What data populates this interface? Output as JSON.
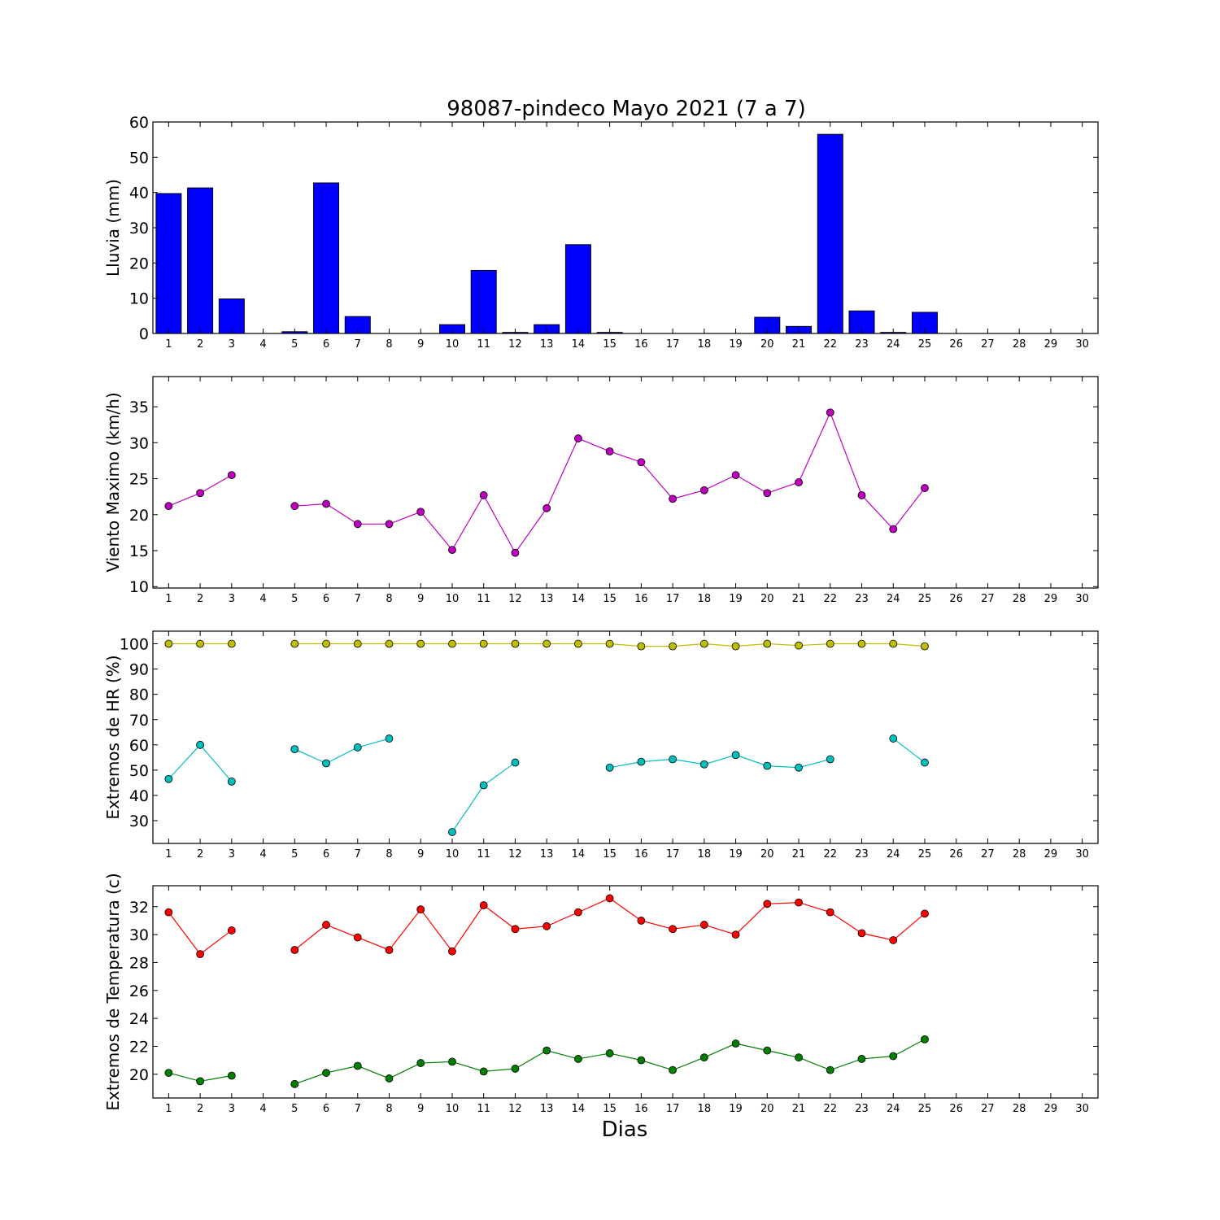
{
  "title": "98087-pindeco Mayo 2021  (7 a 7)",
  "xlabel": "Dias",
  "chart_data": [
    {
      "type": "bar",
      "ylabel": "Lluvia (mm)",
      "x": [
        1,
        2,
        3,
        4,
        5,
        6,
        7,
        8,
        9,
        10,
        11,
        12,
        13,
        14,
        15,
        16,
        17,
        18,
        19,
        20,
        21,
        22,
        23,
        24,
        25
      ],
      "values": [
        39.7,
        41.3,
        9.8,
        0,
        0.5,
        42.7,
        4.8,
        0,
        0,
        2.5,
        17.9,
        0.3,
        2.5,
        25.2,
        0.3,
        0,
        0,
        0,
        0,
        4.6,
        2.0,
        56.5,
        6.4,
        0.3,
        6.0
      ],
      "color": "#0000ff",
      "xlim": [
        0.5,
        30.5
      ],
      "ylim": [
        0,
        60
      ],
      "yticks": [
        0,
        10,
        20,
        30,
        40,
        50,
        60
      ]
    },
    {
      "type": "line",
      "ylabel": "Viento Maximo (km/h)",
      "xlim": [
        0.5,
        30.5
      ],
      "ylim": [
        9.8,
        39.2
      ],
      "yticks": [
        10,
        15,
        20,
        25,
        30,
        35
      ],
      "series": [
        {
          "color": "#bf00bf",
          "x": [
            1,
            2,
            3,
            4,
            5,
            6,
            7,
            8,
            9,
            10,
            11,
            12,
            13,
            14,
            15,
            16,
            17,
            18,
            19,
            20,
            21,
            22,
            23,
            24,
            25
          ],
          "values": [
            21.2,
            23.0,
            25.5,
            null,
            21.2,
            21.5,
            18.7,
            18.7,
            20.4,
            15.1,
            22.7,
            14.7,
            20.9,
            30.6,
            28.8,
            27.3,
            22.2,
            23.4,
            25.5,
            23.0,
            24.5,
            34.2,
            22.7,
            18.0,
            23.7
          ]
        }
      ]
    },
    {
      "type": "line",
      "ylabel": "Extremos de HR (%)",
      "xlim": [
        0.5,
        30.5
      ],
      "ylim": [
        21,
        105
      ],
      "yticks": [
        30,
        40,
        50,
        60,
        70,
        80,
        90,
        100
      ],
      "series": [
        {
          "color": "#bfbf00",
          "x": [
            1,
            2,
            3,
            4,
            5,
            6,
            7,
            8,
            9,
            10,
            11,
            12,
            13,
            14,
            15,
            16,
            17,
            18,
            19,
            20,
            21,
            22,
            23,
            24,
            25
          ],
          "values": [
            100,
            100,
            100,
            null,
            100,
            100,
            100,
            100,
            100,
            100,
            100,
            100,
            100,
            100,
            100,
            99,
            99,
            100,
            99,
            100,
            99.3,
            100,
            100,
            100,
            99
          ]
        },
        {
          "color": "#00bfbf",
          "x": [
            1,
            2,
            3,
            4,
            5,
            6,
            7,
            8,
            9,
            10,
            11,
            12,
            13,
            14,
            15,
            16,
            17,
            18,
            19,
            20,
            21,
            22,
            23,
            24,
            25
          ],
          "values": [
            46.5,
            60,
            45.5,
            null,
            58.3,
            52.7,
            59,
            62.5,
            null,
            25.5,
            44,
            53,
            null,
            null,
            51,
            53.3,
            54.3,
            52.3,
            56,
            51.7,
            51,
            54.3,
            null,
            62.5,
            53
          ]
        }
      ]
    },
    {
      "type": "line",
      "ylabel": "Extremos de Temperatura (c)",
      "xlim": [
        0.5,
        30.5
      ],
      "ylim": [
        18.3,
        33.5
      ],
      "yticks": [
        20,
        22,
        24,
        26,
        28,
        30,
        32
      ],
      "series": [
        {
          "color": "#ff0000",
          "x": [
            1,
            2,
            3,
            4,
            5,
            6,
            7,
            8,
            9,
            10,
            11,
            12,
            13,
            14,
            15,
            16,
            17,
            18,
            19,
            20,
            21,
            22,
            23,
            24,
            25
          ],
          "values": [
            31.6,
            28.6,
            30.3,
            null,
            28.9,
            30.7,
            29.8,
            28.9,
            31.8,
            28.8,
            32.1,
            30.4,
            30.6,
            31.6,
            32.6,
            31.0,
            30.4,
            30.7,
            30.0,
            32.2,
            32.3,
            31.6,
            30.1,
            29.6,
            31.5
          ]
        },
        {
          "color": "#007f00",
          "x": [
            1,
            2,
            3,
            4,
            5,
            6,
            7,
            8,
            9,
            10,
            11,
            12,
            13,
            14,
            15,
            16,
            17,
            18,
            19,
            20,
            21,
            22,
            23,
            24,
            25
          ],
          "values": [
            20.1,
            19.5,
            19.9,
            null,
            19.3,
            20.1,
            20.6,
            19.7,
            20.8,
            20.9,
            20.2,
            20.4,
            21.7,
            21.1,
            21.5,
            21.0,
            20.3,
            21.2,
            22.2,
            21.7,
            21.2,
            20.3,
            21.1,
            21.3,
            22.5
          ]
        }
      ]
    }
  ]
}
